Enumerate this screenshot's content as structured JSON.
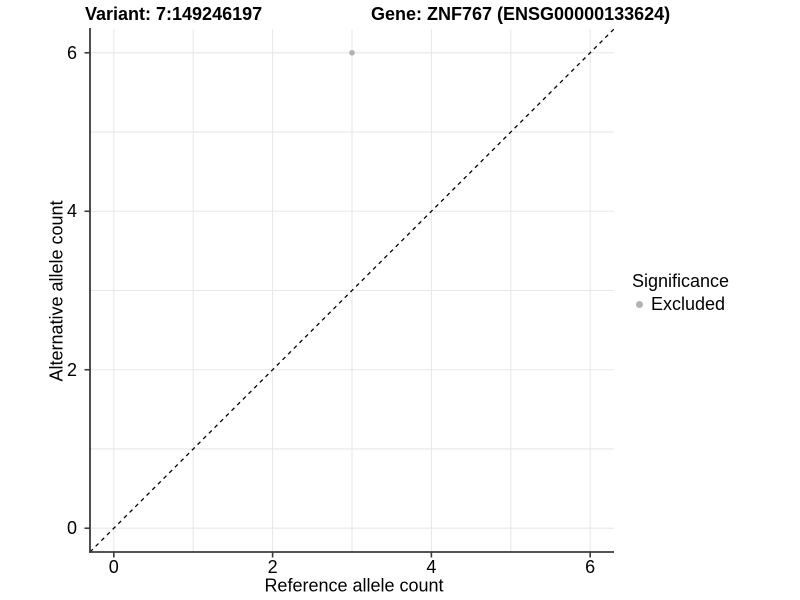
{
  "figure": {
    "variant_title": "Variant: 7:149246197",
    "gene_title": "Gene: ZNF767 (ENSG00000133624)"
  },
  "axes": {
    "x_label": "Reference allele count",
    "y_label": "Alternative allele count"
  },
  "legend": {
    "title": "Significance",
    "items": [
      {
        "label": "Excluded",
        "color": "#b2b2b2",
        "marker": "circle-icon"
      }
    ]
  },
  "chart_data": {
    "type": "scatter",
    "title": "Variant: 7:149246197 — Gene: ZNF767 (ENSG00000133624)",
    "xlabel": "Reference allele count",
    "ylabel": "Alternative allele count",
    "xlim": [
      -0.3,
      6.3
    ],
    "ylim": [
      -0.3,
      6.3
    ],
    "x_ticks": [
      0,
      2,
      4,
      6
    ],
    "y_ticks": [
      0,
      2,
      4,
      6
    ],
    "gridlines": [
      0,
      1,
      2,
      3,
      4,
      5,
      6
    ],
    "grid": "on",
    "legend_position": "right",
    "series": [
      {
        "name": "Excluded",
        "color": "#b2b2b2",
        "marker_radius": 2.8,
        "points": [
          {
            "x": 3,
            "y": 6
          }
        ]
      }
    ],
    "reference_line": {
      "type": "identity",
      "style": "dashed",
      "color": "#000000",
      "from": [
        -0.3,
        -0.3
      ],
      "to": [
        6.3,
        6.3
      ]
    }
  },
  "colors": {
    "background": "#ffffff",
    "gridline": "#e8e8e8",
    "axis": "#3b3b3b",
    "text": "#000000"
  }
}
